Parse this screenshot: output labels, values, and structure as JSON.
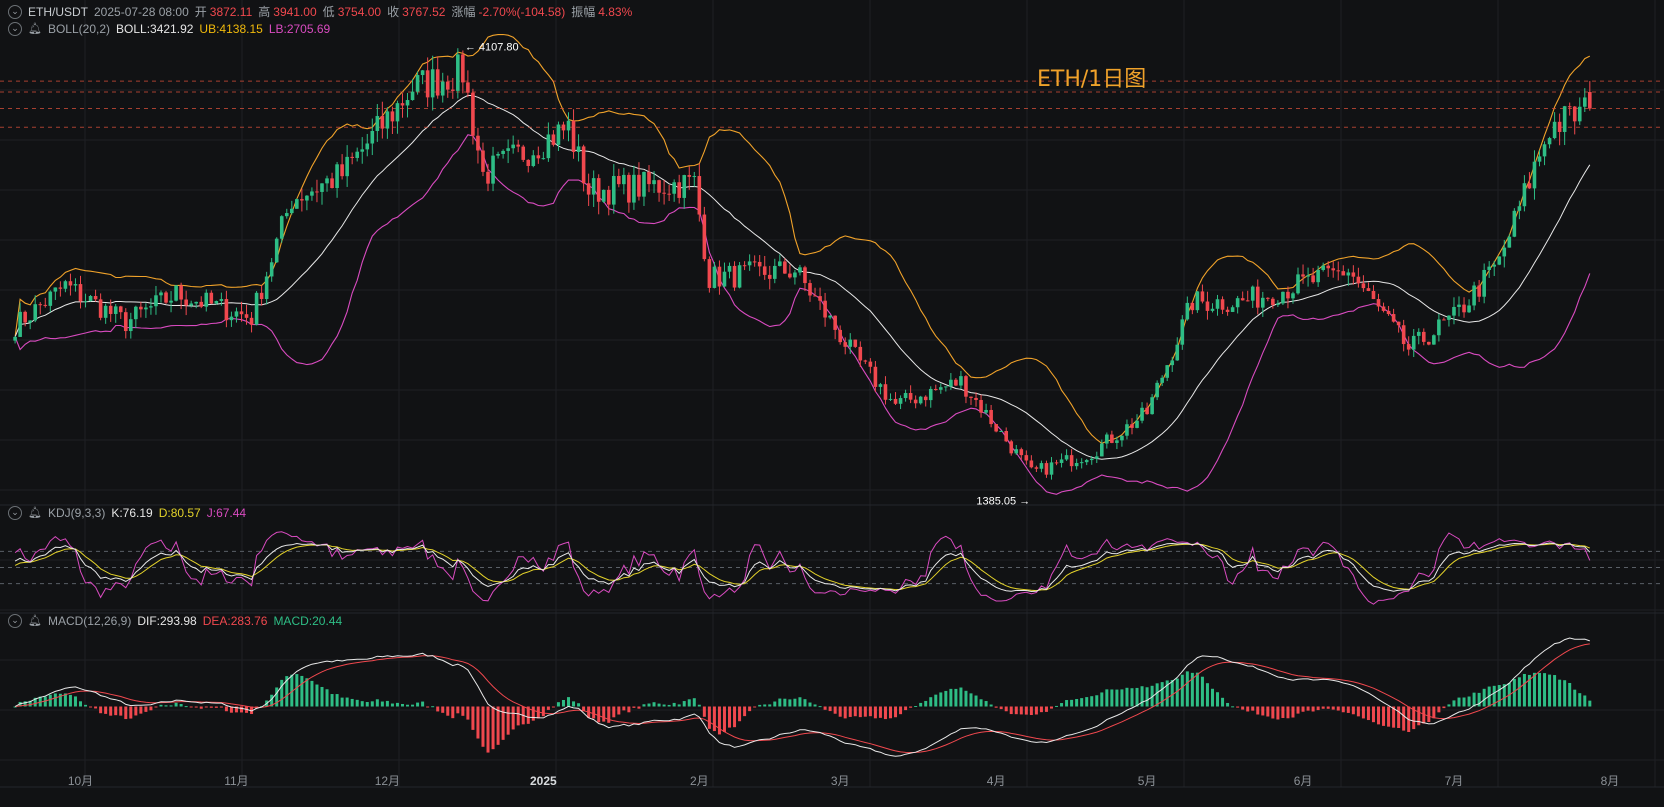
{
  "header": {
    "symbol": "ETH/USDT",
    "datetime": "2025-07-28 08:00",
    "open_label": "开",
    "open": "3872.11",
    "high_label": "高",
    "high": "3941.00",
    "low_label": "低",
    "low": "3754.00",
    "close_label": "收",
    "close": "3767.52",
    "change_label": "涨幅",
    "change": "-2.70%(-104.58)",
    "amp_label": "振幅",
    "amplitude": "4.83%"
  },
  "boll": {
    "name": "BOLL(20,2)",
    "boll": "BOLL:3421.92",
    "ub": "UB:4138.15",
    "lb": "LB:2705.69"
  },
  "kdj": {
    "name": "KDJ(9,3,3)",
    "k": "K:76.19",
    "d": "D:80.57",
    "j": "J:67.44"
  },
  "macd": {
    "name": "MACD(12,26,9)",
    "dif": "DIF:293.98",
    "dea": "DEA:283.76",
    "macd": "MACD:20.44"
  },
  "overlay_title": "ETH/1日图",
  "annotations": {
    "high": "4107.80",
    "low": "1385.05"
  },
  "x_axis_labels": [
    "10月",
    "11月",
    "12月",
    "2025",
    "2月",
    "3月",
    "4月",
    "5月",
    "6月",
    "7月",
    "8月"
  ],
  "colors": {
    "up": "#2ebd85",
    "down": "#f0484e",
    "boll_mid": "#e8e8e8",
    "boll_ub": "#f0a22a",
    "boll_lb": "#d94bc0",
    "k": "#e8e8e8",
    "d": "#e3d22a",
    "j": "#d94bc0",
    "dif": "#e8e8e8",
    "dea": "#f0484e",
    "bg": "#111214",
    "grid": "#1e2024",
    "title": "#f0a22a"
  },
  "chart_data": {
    "type": "candlestick",
    "title": "ETH/1日图",
    "xlabel": "",
    "ylabel": "",
    "x": [
      "2024-10",
      "2024-11",
      "2024-12",
      "2025-01",
      "2025-02",
      "2025-03",
      "2025-04",
      "2025-05",
      "2025-06",
      "2025-07",
      "2025-08"
    ],
    "ylim": [
      1300,
      4200
    ],
    "anchors": [
      {
        "date": "2024-09-18",
        "close": 2400
      },
      {
        "date": "2024-09-28",
        "close": 2650
      },
      {
        "date": "2024-10-10",
        "close": 2420
      },
      {
        "date": "2024-10-20",
        "close": 2600
      },
      {
        "date": "2024-11-04",
        "close": 2450
      },
      {
        "date": "2024-11-12",
        "close": 3200
      },
      {
        "date": "2024-11-22",
        "close": 3350
      },
      {
        "date": "2024-12-06",
        "close": 3900
      },
      {
        "date": "2024-12-16",
        "close": 4000
      },
      {
        "date": "2024-12-20",
        "close": 3350
      },
      {
        "date": "2025-01-06",
        "close": 3650
      },
      {
        "date": "2025-01-10",
        "close": 3250
      },
      {
        "date": "2025-01-31",
        "close": 3300
      },
      {
        "date": "2025-02-03",
        "close": 2700
      },
      {
        "date": "2025-02-20",
        "close": 2750
      },
      {
        "date": "2025-03-04",
        "close": 2200
      },
      {
        "date": "2025-03-12",
        "close": 1900
      },
      {
        "date": "2025-03-25",
        "close": 2050
      },
      {
        "date": "2025-04-08",
        "close": 1470
      },
      {
        "date": "2025-04-20",
        "close": 1600
      },
      {
        "date": "2025-05-01",
        "close": 1850
      },
      {
        "date": "2025-05-10",
        "close": 2550
      },
      {
        "date": "2025-05-20",
        "close": 2550
      },
      {
        "date": "2025-06-10",
        "close": 2750
      },
      {
        "date": "2025-06-22",
        "close": 2250
      },
      {
        "date": "2025-07-01",
        "close": 2450
      },
      {
        "date": "2025-07-10",
        "close": 2800
      },
      {
        "date": "2025-07-20",
        "close": 3650
      },
      {
        "date": "2025-07-28",
        "close": 3767.52
      }
    ],
    "last_candle": {
      "open": 3872.11,
      "high": 3941.0,
      "low": 3754.0,
      "close": 3767.52
    },
    "high_marker": 4107.8,
    "low_marker": 1385.05,
    "boll": {
      "mid": 3421.92,
      "ub": 4138.15,
      "lb": 2705.69
    },
    "kdj": {
      "k": 76.19,
      "d": 80.57,
      "j": 67.44
    },
    "macd": {
      "dif": 293.98,
      "dea": 283.76,
      "hist": 20.44
    },
    "grid": true
  }
}
